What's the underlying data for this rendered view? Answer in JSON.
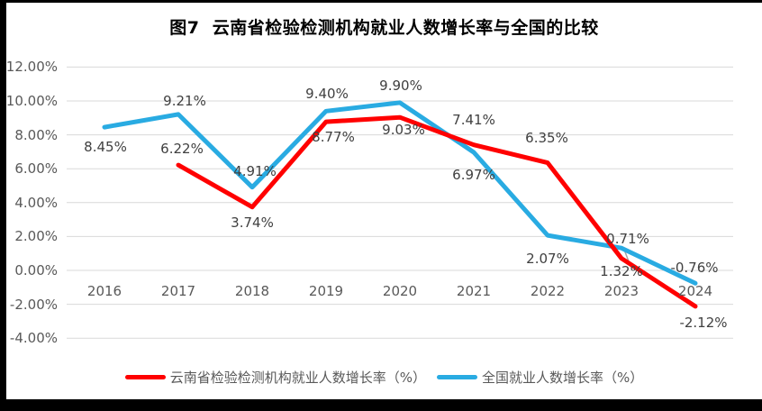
{
  "title": "图7  云南省检验检测机构就业人数增长率与全国的比较",
  "colors": {
    "yunnan": "#FF0000",
    "national": "#29ABE2",
    "grid": "#D9D9D9",
    "axis_text": "#595959",
    "label_text": "#404040",
    "leader_line": "#A6A6A6"
  },
  "chart_data": {
    "type": "line",
    "title": "图7  云南省检验检测机构就业人数增长率与全国的比较",
    "categories": [
      "2016",
      "2017",
      "2018",
      "2019",
      "2020",
      "2021",
      "2022",
      "2023",
      "2024"
    ],
    "series": [
      {
        "name": "云南省检验检测机构就业人数增长率（%）",
        "color_key": "yunnan",
        "values": [
          null,
          6.22,
          3.74,
          8.77,
          9.03,
          7.41,
          6.35,
          0.71,
          -2.12
        ],
        "labels": [
          "",
          "6.22%",
          "3.74%",
          "8.77%",
          "9.03%",
          "7.41%",
          "6.35%",
          "0.71%",
          "-2.12%"
        ]
      },
      {
        "name": "全国就业人数增长率（%）",
        "color_key": "national",
        "values": [
          8.45,
          9.21,
          4.91,
          9.4,
          9.9,
          6.97,
          2.07,
          1.32,
          -0.76
        ],
        "labels": [
          "8.45%",
          "9.21%",
          "4.91%",
          "9.40%",
          "9.90%",
          "6.97%",
          "2.07%",
          "1.32%",
          "-0.76%"
        ]
      }
    ],
    "y_ticks": [
      {
        "label": "12.00%",
        "value": 12
      },
      {
        "label": "10.00%",
        "value": 10
      },
      {
        "label": "8.00%",
        "value": 8
      },
      {
        "label": "6.00%",
        "value": 6
      },
      {
        "label": "4.00%",
        "value": 4
      },
      {
        "label": "2.00%",
        "value": 2
      },
      {
        "label": "0.00%",
        "value": 0
      },
      {
        "label": "-2.00%",
        "value": -2
      },
      {
        "label": "-4.00%",
        "value": -4
      }
    ],
    "ylim": [
      -4,
      12
    ],
    "grid": true,
    "legend_position": "bottom",
    "data_labels_shown": true
  }
}
